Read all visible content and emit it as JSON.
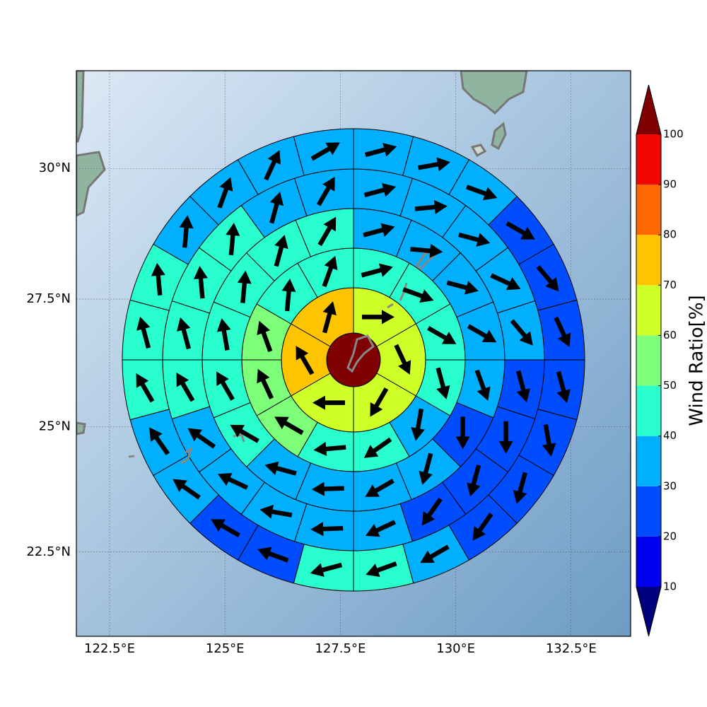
{
  "chart_data": {
    "type": "polar_sectors",
    "projection": "mercator",
    "xlim": [
      121.78,
      133.79
    ],
    "ylim": [
      20.79,
      31.83
    ],
    "xticks": [
      {
        "value": 122.5,
        "label": "122.5°E"
      },
      {
        "value": 125,
        "label": "125°E"
      },
      {
        "value": 127.5,
        "label": "127.5°E"
      },
      {
        "value": 130,
        "label": "130°E"
      },
      {
        "value": 132.5,
        "label": "132.5°E"
      }
    ],
    "yticks": [
      {
        "value": 22.5,
        "label": "22.5°N"
      },
      {
        "value": 25,
        "label": "25°N"
      },
      {
        "value": 27.5,
        "label": "27.5°N"
      },
      {
        "value": 30,
        "label": "30°N"
      }
    ],
    "grid": true,
    "colorbar": {
      "label": "Wind Ratio[%]",
      "ticks": [
        10,
        20,
        30,
        40,
        50,
        60,
        70,
        80,
        90,
        100
      ],
      "colors": [
        "#00007f",
        "#0000f1",
        "#004cff",
        "#00b0ff",
        "#29ffce",
        "#7dff7a",
        "#ceff29",
        "#ffc400",
        "#ff6800",
        "#f10800",
        "#7f0000"
      ],
      "extend": "both"
    },
    "center": {
      "value": 100
    },
    "rings": [
      {
        "values": [
          63,
          62,
          64,
          61,
          72,
          74
        ],
        "directions": [
          90,
          155,
          210,
          270,
          330,
          15
        ]
      },
      {
        "values": [
          45,
          42,
          44,
          41,
          33,
          42,
          43,
          55,
          56,
          57,
          46,
          45
        ],
        "directions": [
          75,
          110,
          120,
          165,
          190,
          235,
          265,
          300,
          335,
          340,
          5,
          20
        ]
      },
      {
        "values": [
          35,
          36,
          37,
          35,
          34,
          25,
          32,
          33,
          34,
          36,
          42,
          44,
          45,
          44,
          43,
          42
        ],
        "directions": [
          75,
          95,
          105,
          120,
          160,
          180,
          195,
          240,
          268,
          285,
          300,
          330,
          350,
          5,
          15,
          30
        ]
      },
      {
        "values": [
          34,
          35,
          33,
          31,
          30,
          25,
          24,
          22,
          26,
          32,
          33,
          34,
          35,
          36,
          41,
          42,
          43,
          41,
          37,
          36
        ],
        "directions": [
          75,
          85,
          105,
          115,
          140,
          165,
          180,
          195,
          215,
          245,
          268,
          280,
          295,
          305,
          330,
          345,
          355,
          5,
          15,
          30
        ]
      },
      {
        "values": [
          35,
          36,
          34,
          25,
          24,
          22,
          23,
          24,
          22,
          25,
          31,
          42,
          43,
          24,
          25,
          33,
          34,
          42,
          43,
          44,
          36,
          37,
          35,
          34
        ],
        "directions": [
          75,
          80,
          110,
          120,
          140,
          155,
          165,
          170,
          195,
          215,
          240,
          250,
          255,
          290,
          300,
          305,
          325,
          330,
          345,
          355,
          5,
          20,
          25,
          60
        ]
      }
    ]
  }
}
